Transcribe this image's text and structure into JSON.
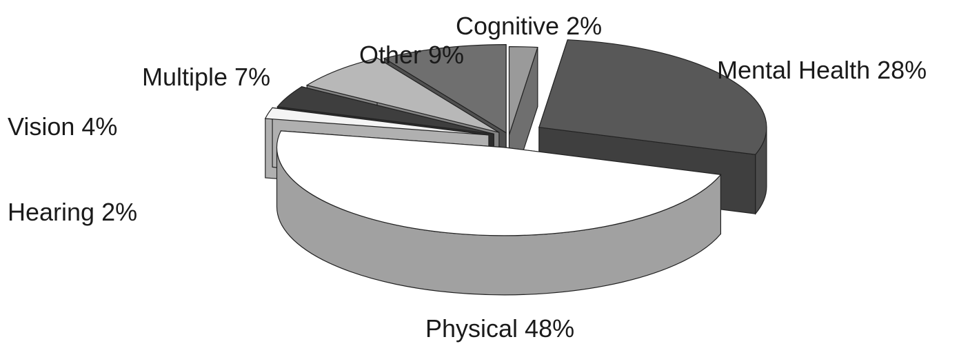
{
  "chart_data": {
    "type": "pie",
    "style": "3d-exploded",
    "legend": "none",
    "slices": [
      {
        "key": "cognitive",
        "label": "Cognitive",
        "value": 2,
        "display": "Cognitive 2%",
        "color": "#9a9a9a"
      },
      {
        "key": "mental_health",
        "label": "Mental Health",
        "value": 28,
        "display": "Mental Health 28%",
        "color": "#585858"
      },
      {
        "key": "physical",
        "label": "Physical",
        "value": 48,
        "display": "Physical 48%",
        "color": "#ffffff"
      },
      {
        "key": "hearing",
        "label": "Hearing",
        "value": 2,
        "display": "Hearing 2%",
        "color": "#f4f4f4"
      },
      {
        "key": "vision",
        "label": "Vision",
        "value": 4,
        "display": "Vision 4%",
        "color": "#3e3e3e"
      },
      {
        "key": "multiple",
        "label": "Multiple",
        "value": 7,
        "display": "Multiple 7%",
        "color": "#b8b8b8"
      },
      {
        "key": "other",
        "label": "Other",
        "value": 9,
        "display": "Other 9%",
        "color": "#6f6f6f"
      }
    ]
  }
}
